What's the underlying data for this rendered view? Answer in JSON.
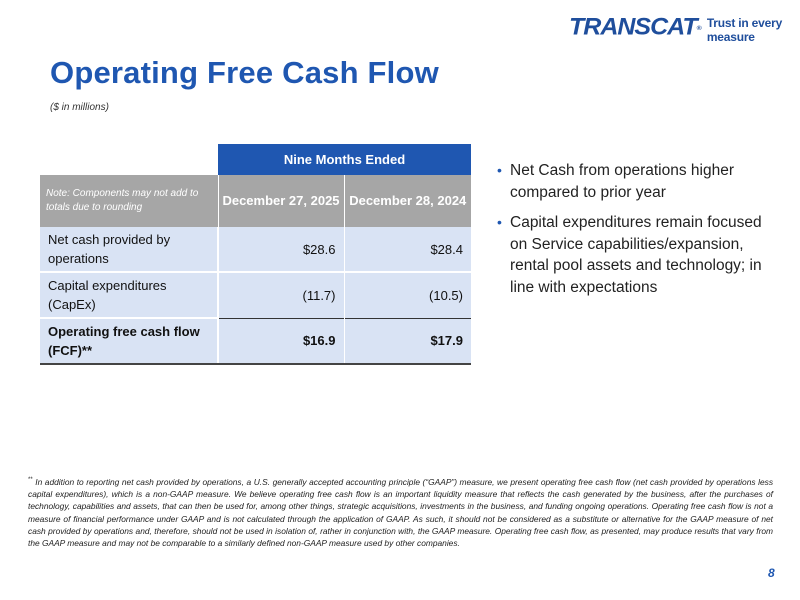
{
  "brand": {
    "logo_text": "TRANSCAT",
    "logo_reg": "®",
    "tagline": "Trust in every measure",
    "color": "#1f57b1"
  },
  "slide": {
    "title": "Operating Free Cash Flow",
    "subtitle": "($ in millions)",
    "page_number": "8"
  },
  "table": {
    "group_header": "Nine Months Ended",
    "note": "Note: Components may not add to totals due to rounding",
    "columns": [
      "December 27, 2025",
      "December 28, 2024"
    ],
    "rows": [
      {
        "label": "Net cash provided by operations",
        "values": [
          "$28.6",
          "$28.4"
        ]
      },
      {
        "label": "Capital expenditures (CapEx)",
        "values": [
          "(11.7)",
          "(10.5)"
        ]
      },
      {
        "label": "Operating free cash flow (FCF)**",
        "values": [
          "$16.9",
          "$17.9"
        ]
      }
    ]
  },
  "bullets": [
    "Net Cash from operations higher compared to prior year",
    "Capital expenditures remain focused on Service capabilities/expansion, rental pool assets and technology; in line with expectations"
  ],
  "footnote": {
    "marker": "**",
    "text": "In addition to reporting net cash provided by operations, a U.S. generally accepted accounting principle (“GAAP”) measure, we present operating free cash flow (net cash provided by operations less capital expenditures), which is a non-GAAP measure. We believe operating free cash flow is an important liquidity measure that reflects the cash generated by the business, after the purchases of technology, capabilities and assets, that can then be used for, among other things, strategic acquisitions, investments in the business, and funding ongoing operations. Operating free cash flow is not a measure of financial performance under GAAP and is not calculated through the application of GAAP. As such, it should not be considered as a substitute or alternative for the GAAP measure of net cash provided by operations and, therefore, should not be used in isolation of, rather in conjunction with, the GAAP measure. Operating free cash flow, as presented, may produce results that vary from the GAAP measure and may not be comparable to a similarly defined non-GAAP measure used by other companies."
  }
}
